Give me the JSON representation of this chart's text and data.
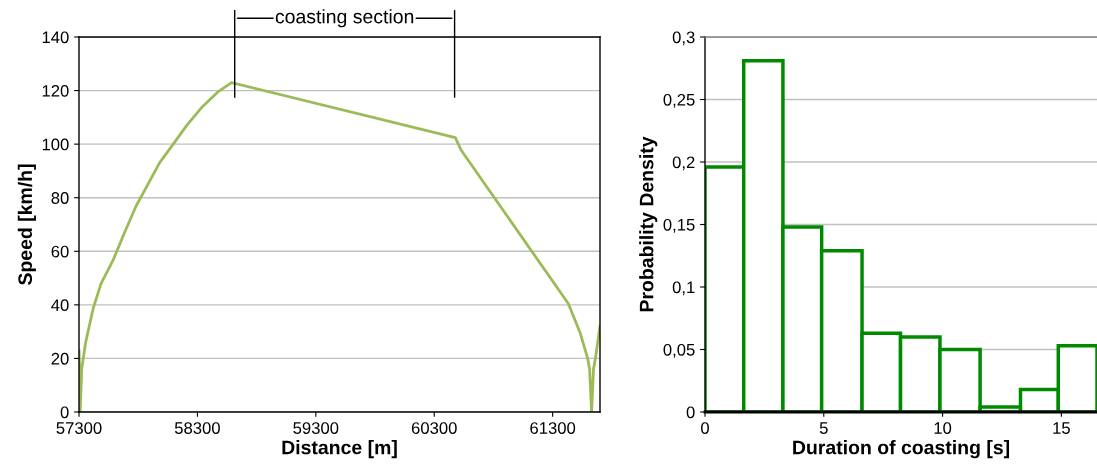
{
  "chart_data": [
    {
      "type": "line",
      "xlabel": "Distance [m]",
      "ylabel": "Speed [km/h]",
      "series": [
        {
          "color": "#9bbb59",
          "x": [
            57300,
            57307,
            57310,
            57323,
            57356,
            57422,
            57487,
            57586,
            57685,
            57783,
            57882,
            57980,
            58079,
            58210,
            58342,
            58473,
            58588,
            60478,
            60528,
            61432,
            61531,
            61596,
            61612,
            61629,
            61645,
            61661,
            61700
          ],
          "values": [
            23,
            14,
            0,
            16,
            26,
            39,
            48,
            56.5,
            67,
            77,
            85,
            93,
            99,
            107,
            114,
            119.5,
            123,
            102.4,
            97.7,
            40.5,
            29.7,
            20,
            16,
            0,
            16,
            20,
            32
          ]
        }
      ],
      "xlim": [
        57300,
        61700
      ],
      "xticks": [
        57300,
        58300,
        59300,
        60300,
        61300
      ],
      "ylim": [
        0,
        140
      ],
      "yticks": [
        0,
        20,
        40,
        60,
        80,
        100,
        120,
        140
      ],
      "grid": "y",
      "marker": "none",
      "line_style": "solid",
      "ref_lines": [
        {
          "axis": "x",
          "value": 58615,
          "color": "#000000"
        },
        {
          "axis": "x",
          "value": 60472,
          "color": "#000000"
        }
      ],
      "annotations": [
        "coasting section"
      ]
    },
    {
      "type": "histogram",
      "xlabel": "Duration of coasting [s]",
      "ylabel": "Probability Density",
      "bins": [
        0,
        1.63,
        3.28,
        4.91,
        6.61,
        8.23,
        9.89,
        11.58,
        13.28,
        14.87,
        16.5
      ],
      "values": [
        0.196,
        0.281,
        0.148,
        0.129,
        0.063,
        0.06,
        0.05,
        0.004,
        0.018,
        0.053
      ],
      "color": "#008a00",
      "xlim": [
        0,
        16.5
      ],
      "xticks": [
        0,
        5,
        10,
        15
      ],
      "ylim": [
        0,
        0.3
      ],
      "yticks": [
        {
          "value": 0,
          "label": "0"
        },
        {
          "value": 0.05,
          "label": "0,05"
        },
        {
          "value": 0.1,
          "label": "0,1"
        },
        {
          "value": 0.15,
          "label": "0,15"
        },
        {
          "value": 0.2,
          "label": "0,2"
        },
        {
          "value": 0.25,
          "label": "0,25"
        },
        {
          "value": 0.3,
          "label": "0,3"
        }
      ],
      "grid": "y"
    }
  ]
}
